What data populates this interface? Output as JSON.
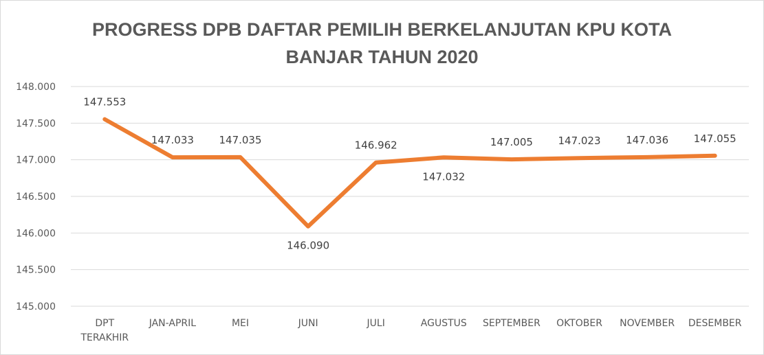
{
  "chart_data": {
    "type": "line",
    "title": [
      "PROGRESS DPB DAFTAR PEMILIH BERKELANJUTAN KPU KOTA",
      "BANJAR TAHUN 2020"
    ],
    "categories": [
      [
        "DPT",
        "TERAKHIR"
      ],
      [
        "JAN-APRIL"
      ],
      [
        "MEI"
      ],
      [
        "JUNI"
      ],
      [
        "JULI"
      ],
      [
        "AGUSTUS"
      ],
      [
        "SEPTEMBER"
      ],
      [
        "OKTOBER"
      ],
      [
        "NOVEMBER"
      ],
      [
        "DESEMBER"
      ]
    ],
    "series": [
      {
        "values": [
          147553,
          147033,
          147035,
          146090,
          146962,
          147032,
          147005,
          147023,
          147036,
          147055
        ],
        "labels": [
          "147.553",
          "147.033",
          "147.035",
          "146.090",
          "146.962",
          "147.032",
          "147.005",
          "147.023",
          "147.036",
          "147.055"
        ],
        "label_positions": [
          "above",
          "above",
          "above",
          "below",
          "above",
          "below",
          "above",
          "above",
          "above",
          "above"
        ],
        "color": "#ED7D31"
      }
    ],
    "yticks": [
      "145.000",
      "145.500",
      "146.000",
      "146.500",
      "147.000",
      "147.500",
      "148.000"
    ],
    "ylim": [
      145000,
      148000
    ],
    "grid": true,
    "legend": "none",
    "xlabel": "",
    "ylabel": ""
  }
}
